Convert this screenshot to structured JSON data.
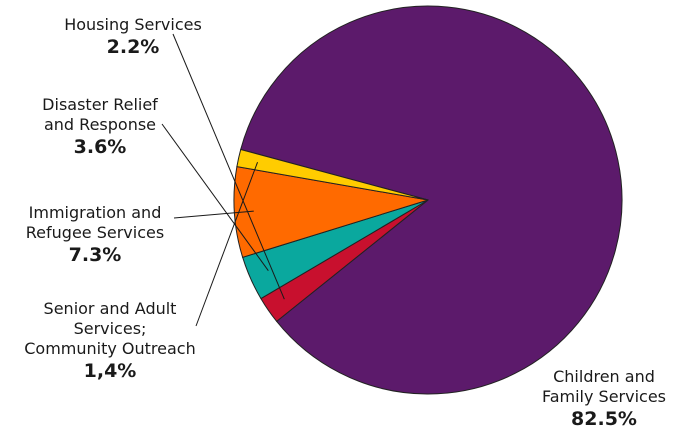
{
  "chart_data": {
    "type": "pie",
    "title": "",
    "start_angle_deg": 164.9,
    "direction": "clockwise",
    "slices": [
      {
        "name": "Children and Family Services",
        "value": 82.5,
        "label": "82.5%",
        "color": "#5c1a6b",
        "name_lines": [
          "Children and",
          "Family Services"
        ]
      },
      {
        "name": "Housing Services",
        "value": 2.2,
        "label": "2.2%",
        "color": "#c8102e",
        "name_lines": [
          "Housing Services"
        ]
      },
      {
        "name": "Disaster Relief and Response",
        "value": 3.6,
        "label": "3.6%",
        "color": "#0aa89e",
        "name_lines": [
          "Disaster Relief",
          "and Response"
        ]
      },
      {
        "name": "Immigration and Refugee Services",
        "value": 7.3,
        "label": "7.3%",
        "color": "#ff6a00",
        "name_lines": [
          "Immigration and",
          "Refugee Services"
        ]
      },
      {
        "name": "Senior and Adult Services; Community Outreach",
        "value": 1.4,
        "label": "1,4%",
        "color": "#ffcc00",
        "name_lines": [
          "Senior and Adult",
          "Services;",
          "Community Outreach"
        ]
      }
    ]
  }
}
